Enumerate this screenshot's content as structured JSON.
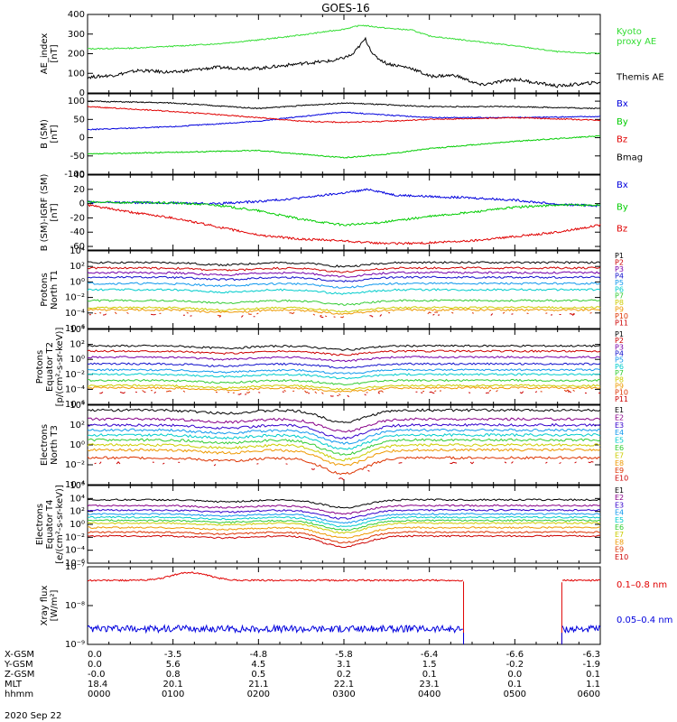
{
  "title": "GOES-16",
  "date_label": "2020 Sep 22",
  "colors": {
    "black": "#000000",
    "red": "#e00000",
    "green": "#00cc00",
    "blue": "#0000dd",
    "bright_green": "#33dd33",
    "p_series": [
      "#000000",
      "#cc0000",
      "#7700aa",
      "#1111cc",
      "#1199ee",
      "#00cccc",
      "#33cc33",
      "#cccc00",
      "#ee9900",
      "#dd3300",
      "#cc0000"
    ],
    "e_series": [
      "#000000",
      "#880088",
      "#3300cc",
      "#1199ee",
      "#00cccc",
      "#33cc33",
      "#cccc00",
      "#ee9900",
      "#dd3300",
      "#cc0000"
    ]
  },
  "chart_data": [
    {
      "type": "line",
      "id": "ae",
      "ylabel": [
        "AE_index",
        "[nT]"
      ],
      "ylim": [
        0,
        400
      ],
      "yticks": [
        "0",
        "100",
        "200",
        "300",
        "400"
      ],
      "series": [
        {
          "name": "Kyoto proxy AE",
          "label_lines": [
            "Kyoto",
            "proxy AE"
          ],
          "color": "#33dd33",
          "x": [
            0,
            0.5,
            1,
            1.5,
            2,
            2.5,
            3,
            3.2,
            3.5,
            3.8,
            4,
            4.5,
            5,
            5.5,
            6
          ],
          "y": [
            225,
            228,
            238,
            250,
            270,
            295,
            325,
            345,
            330,
            320,
            290,
            265,
            240,
            210,
            200
          ]
        },
        {
          "name": "Themis AE",
          "label_lines": [
            "Themis AE"
          ],
          "color": "#000000",
          "x": [
            0,
            0.3,
            0.6,
            1,
            1.5,
            2,
            2.5,
            2.9,
            3.1,
            3.25,
            3.35,
            3.5,
            3.8,
            4,
            4.3,
            4.6,
            5,
            5.5,
            6
          ],
          "y": [
            80,
            90,
            115,
            105,
            130,
            125,
            150,
            165,
            195,
            275,
            190,
            150,
            125,
            85,
            90,
            40,
            70,
            35,
            55
          ]
        }
      ]
    },
    {
      "type": "line",
      "id": "b_sm",
      "ylabel": [
        "B (SM)",
        "[nT]"
      ],
      "ylim": [
        -100,
        120
      ],
      "yticks": [
        "-100",
        "-50",
        "0",
        "50",
        "100"
      ],
      "series": [
        {
          "name": "Bx",
          "label_lines": [
            "Bx"
          ],
          "color": "#0000dd",
          "x": [
            0,
            1,
            2,
            2.5,
            3,
            3.5,
            4,
            5,
            6
          ],
          "y": [
            22,
            30,
            45,
            58,
            70,
            62,
            55,
            55,
            58
          ]
        },
        {
          "name": "By",
          "label_lines": [
            "By"
          ],
          "color": "#00cc00",
          "x": [
            0,
            1,
            2,
            2.5,
            3,
            3.5,
            4,
            5,
            6
          ],
          "y": [
            -45,
            -40,
            -35,
            -45,
            -55,
            -45,
            -30,
            -10,
            5
          ]
        },
        {
          "name": "Bz",
          "label_lines": [
            "Bz"
          ],
          "color": "#e00000",
          "x": [
            0,
            1,
            2,
            2.5,
            3,
            3.5,
            4,
            5,
            6
          ],
          "y": [
            85,
            72,
            55,
            45,
            42,
            45,
            50,
            55,
            48
          ]
        },
        {
          "name": "Bmag",
          "label_lines": [
            "Bmag"
          ],
          "color": "#000000",
          "x": [
            0,
            1,
            2,
            2.5,
            3,
            3.5,
            4,
            5,
            6
          ],
          "y": [
            100,
            95,
            80,
            88,
            95,
            90,
            85,
            85,
            80
          ]
        }
      ]
    },
    {
      "type": "line",
      "id": "b_igrf",
      "ylabel": [
        "B (SM)-IGRF (SM)",
        "[nT]"
      ],
      "ylim": [
        -65,
        40
      ],
      "yticks": [
        "-60",
        "-40",
        "-20",
        "0",
        "20",
        "40"
      ],
      "series": [
        {
          "name": "Bx",
          "label_lines": [
            "Bx"
          ],
          "color": "#0000dd",
          "x": [
            0,
            1,
            1.5,
            2,
            2.5,
            3,
            3.3,
            3.6,
            4,
            4.5,
            5,
            5.5,
            6
          ],
          "y": [
            2,
            1,
            0,
            3,
            8,
            15,
            20,
            12,
            10,
            8,
            5,
            -1,
            -3
          ]
        },
        {
          "name": "By",
          "label_lines": [
            "By"
          ],
          "color": "#00cc00",
          "x": [
            0,
            1,
            1.5,
            2,
            2.5,
            3,
            3.3,
            3.6,
            4,
            4.5,
            5,
            5.5,
            6
          ],
          "y": [
            2,
            1,
            -2,
            -10,
            -22,
            -30,
            -28,
            -24,
            -18,
            -12,
            -5,
            -2,
            -2
          ]
        },
        {
          "name": "Bz",
          "label_lines": [
            "Bz"
          ],
          "color": "#e00000",
          "x": [
            0,
            0.5,
            1,
            1.5,
            2,
            2.5,
            3,
            3.3,
            3.6,
            4,
            4.5,
            5,
            5.5,
            6
          ],
          "y": [
            -2,
            -12,
            -20,
            -32,
            -44,
            -50,
            -52,
            -55,
            -56,
            -55,
            -52,
            -46,
            -40,
            -30
          ]
        }
      ]
    },
    {
      "type": "line",
      "id": "prot_n",
      "log": true,
      "ylabel": [
        "Protons",
        "North T1"
      ],
      "ylim": [
        -6,
        4
      ],
      "yticks": [
        "10⁻⁶",
        "10⁻⁴",
        "10⁻²",
        "10⁰",
        "10²",
        "10⁴"
      ],
      "labels": [
        "P1",
        "P2",
        "P3",
        "P4",
        "P5",
        "P6",
        "P7",
        "P8",
        "P9",
        "P10",
        "P11"
      ],
      "base": [
        2.5,
        1.8,
        1.2,
        0.6,
        -0.2,
        -1.0,
        -2.4,
        -3.3,
        -3.6,
        -4.0,
        -4.2
      ]
    },
    {
      "type": "line",
      "id": "prot_e",
      "log": true,
      "ylabel": [
        "Protons",
        "Equator T2",
        "[p/(cm²-s-sr-keV)]"
      ],
      "ylim": [
        -6,
        4
      ],
      "yticks": [
        "10⁻⁶",
        "10⁻⁴",
        "10⁻²",
        "10⁰",
        "10²",
        "10⁴"
      ],
      "labels": [
        "P1",
        "P2",
        "P3",
        "P4",
        "P5",
        "P6",
        "P7",
        "P8",
        "P9",
        "P10",
        "P11"
      ],
      "base": [
        1.8,
        1.1,
        0.3,
        -0.6,
        -1.4,
        -2.0,
        -2.8,
        -3.5,
        -3.8,
        -4.2,
        -4.4
      ]
    },
    {
      "type": "line",
      "id": "elec_n",
      "log": true,
      "ylabel": [
        "Electrons",
        "North T3"
      ],
      "ylim": [
        -4,
        4
      ],
      "yticks": [
        "10⁻⁴",
        "10⁻²",
        "10⁰",
        "10²",
        "10⁴"
      ],
      "labels": [
        "E1",
        "E2",
        "E3",
        "E4",
        "E5",
        "E6",
        "E7",
        "E8",
        "E9",
        "E10"
      ],
      "base": [
        3.5,
        2.6,
        2.0,
        1.5,
        1.0,
        0.5,
        0.0,
        -0.5,
        -1.3,
        -1.8
      ]
    },
    {
      "type": "line",
      "id": "elec_e",
      "log": true,
      "ylabel": [
        "Electrons",
        "Equator T4",
        "[e/(cm²-s-sr-keV)]"
      ],
      "ylim": [
        -6,
        6
      ],
      "yticks": [
        "10⁻⁶",
        "10⁻⁴",
        "10⁻²",
        "10⁰",
        "10²",
        "10⁴",
        "10⁶"
      ],
      "labels": [
        "E1",
        "E2",
        "E3",
        "E4",
        "E5",
        "E6",
        "E7",
        "E8",
        "E9",
        "E10"
      ],
      "base": [
        3.8,
        2.9,
        2.2,
        1.6,
        1.1,
        0.6,
        0.2,
        -0.5,
        -1.2,
        -1.8
      ]
    },
    {
      "type": "line",
      "id": "xray",
      "log": true,
      "ylabel": [
        "Xray flux",
        "[W/m²]"
      ],
      "ylim": [
        -9,
        -7
      ],
      "yticks": [
        "10⁻⁹",
        "10⁻⁸",
        "10⁻⁷"
      ],
      "series": [
        {
          "name": "0.1-0.8 nm",
          "label_lines": [
            "0.1–0.8 nm"
          ],
          "color": "#e00000"
        },
        {
          "name": "0.05-0.4 nm",
          "label_lines": [
            "0.05–0.4 nm"
          ],
          "color": "#0000dd"
        }
      ]
    }
  ],
  "orbit": {
    "row_labels": [
      "X-GSM",
      "Y-GSM",
      "Z-GSM",
      "MLT",
      "hhmm"
    ],
    "columns": [
      [
        "0.0",
        "0.0",
        "-0.0",
        "18.4",
        "0000"
      ],
      [
        "-3.5",
        "5.6",
        "0.8",
        "20.1",
        "0100"
      ],
      [
        "-4.8",
        "4.5",
        "0.5",
        "21.1",
        "0200"
      ],
      [
        "-5.8",
        "3.1",
        "0.2",
        "22.1",
        "0300"
      ],
      [
        "-6.4",
        "1.5",
        "0.1",
        "23.1",
        "0400"
      ],
      [
        "-6.6",
        "-0.2",
        "0.0",
        "0.1",
        "0500"
      ],
      [
        "-6.3",
        "-1.9",
        "0.1",
        "1.1",
        "0600"
      ]
    ]
  }
}
